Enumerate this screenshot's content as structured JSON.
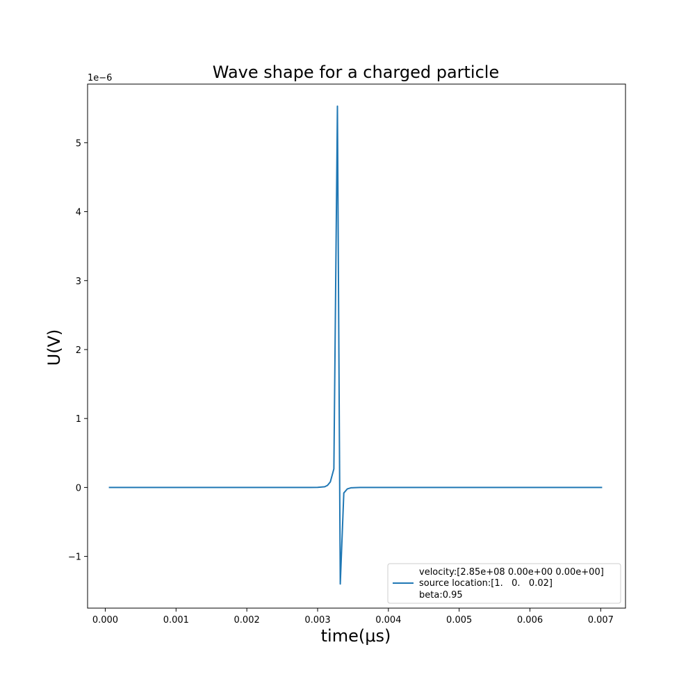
{
  "chart_data": {
    "type": "line",
    "title": "Wave shape for a charged particle",
    "xlabel": "time(μs)",
    "ylabel": "U(V)",
    "y_offset_text": "1e−6",
    "xlim": [
      -0.00025,
      0.00735
    ],
    "ylim": [
      -1.75e-06,
      5.85e-06
    ],
    "x_ticks": [
      0.0,
      0.001,
      0.002,
      0.003,
      0.004,
      0.005,
      0.006,
      0.007
    ],
    "x_tick_labels": [
      "0.000",
      "0.001",
      "0.002",
      "0.003",
      "0.004",
      "0.005",
      "0.006",
      "0.007"
    ],
    "y_ticks": [
      -1e-06,
      0,
      1e-06,
      2e-06,
      3e-06,
      4e-06,
      5e-06
    ],
    "y_tick_labels": [
      "−1",
      "0",
      "1",
      "2",
      "3",
      "4",
      "5"
    ],
    "grid": false,
    "legend_position": "lower-right",
    "line_color": "#1f77b4",
    "series": [
      {
        "name": "velocity:[2.85e+08 0.00e+00 0.00e+00]\nsource location:[1.   0.   0.02]\nbeta:0.95",
        "legend_lines": [
          "velocity:[2.85e+08 0.00e+00 0.00e+00]",
          "source location:[1.   0.   0.02]",
          "beta:0.95"
        ],
        "x": [
          5e-05,
          0.0005,
          0.001,
          0.0015,
          0.002,
          0.0025,
          0.0029,
          0.003,
          0.0031,
          0.00314,
          0.00318,
          0.00323,
          0.00328,
          0.00332,
          0.00337,
          0.00342,
          0.00347,
          0.0036,
          0.0038,
          0.004,
          0.0045,
          0.005,
          0.006,
          0.00702
        ],
        "y": [
          0,
          0,
          0,
          0,
          0,
          0,
          0,
          2e-09,
          1e-08,
          3e-08,
          8e-08,
          2.7e-07,
          5.53e-06,
          -1.4e-06,
          -8e-08,
          -2e-08,
          -5e-09,
          0,
          0,
          0,
          0,
          0,
          0,
          0
        ]
      }
    ]
  }
}
